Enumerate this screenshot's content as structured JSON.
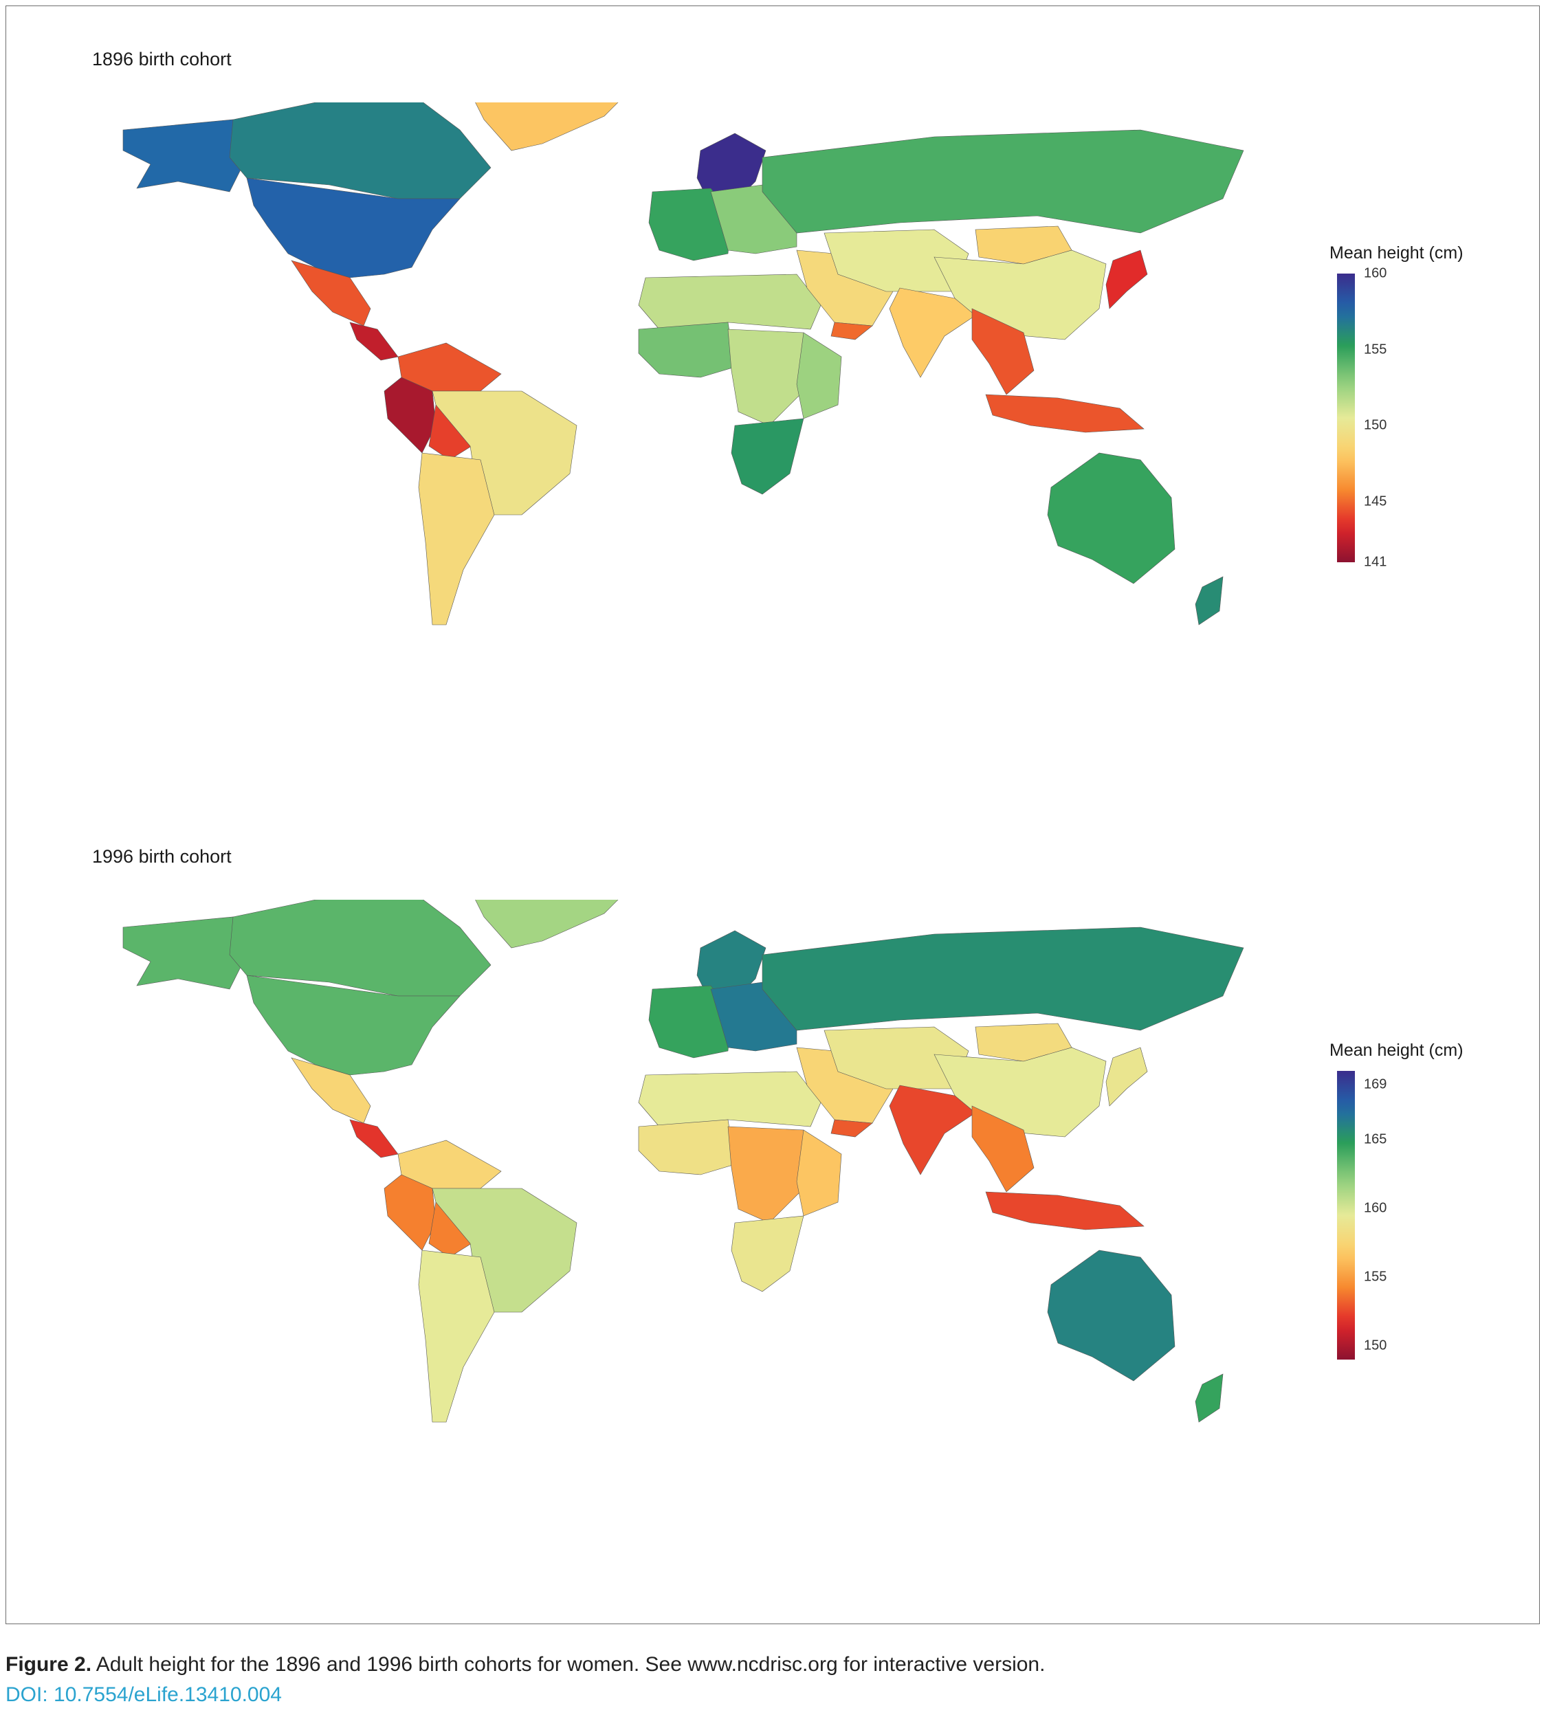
{
  "panels": [
    {
      "title": "1896 birth cohort",
      "legend": {
        "title": "Mean height (cm)",
        "min": 141,
        "max": 160,
        "ticks": [
          "160",
          "155",
          "150",
          "145",
          "141"
        ],
        "tick_values": [
          160,
          155,
          150,
          145,
          141
        ]
      },
      "regions": [
        {
          "name": "Alaska",
          "value": 157.5
        },
        {
          "name": "Canada",
          "value": 156.5
        },
        {
          "name": "USA",
          "value": 157.8
        },
        {
          "name": "Greenland",
          "value": 147.8
        },
        {
          "name": "Mexico",
          "value": 144.5
        },
        {
          "name": "Central America",
          "value": 142.5
        },
        {
          "name": "Northern South America",
          "value": 144.5
        },
        {
          "name": "Peru",
          "value": 141.8
        },
        {
          "name": "Bolivia",
          "value": 144
        },
        {
          "name": "Brazil",
          "value": 149.8
        },
        {
          "name": "Argentina",
          "value": 149
        },
        {
          "name": "Scandinavia",
          "value": 160
        },
        {
          "name": "Western Europe",
          "value": 155
        },
        {
          "name": "Eastern Europe",
          "value": 153
        },
        {
          "name": "Russia",
          "value": 154.5
        },
        {
          "name": "North Africa",
          "value": 151.5
        },
        {
          "name": "West Africa",
          "value": 153.5
        },
        {
          "name": "Central Africa",
          "value": 151.5
        },
        {
          "name": "East Africa",
          "value": 152.5
        },
        {
          "name": "Southern Africa",
          "value": 155.5
        },
        {
          "name": "Middle East",
          "value": 149
        },
        {
          "name": "Yemen",
          "value": 145
        },
        {
          "name": "Central Asia",
          "value": 150.5
        },
        {
          "name": "Mongolia",
          "value": 148.5
        },
        {
          "name": "China",
          "value": 150.5
        },
        {
          "name": "India",
          "value": 148
        },
        {
          "name": "Southeast Asia",
          "value": 144.5
        },
        {
          "name": "Japan",
          "value": 143.5
        },
        {
          "name": "Indonesia",
          "value": 144.5
        },
        {
          "name": "Australia",
          "value": 155
        },
        {
          "name": "New Zealand",
          "value": 156
        }
      ]
    },
    {
      "title": "1996 birth cohort",
      "legend": {
        "title": "Mean height (cm)",
        "min": 149,
        "max": 170,
        "ticks": [
          "169",
          "165",
          "160",
          "155",
          "150"
        ],
        "tick_values": [
          169,
          165,
          160,
          155,
          150
        ]
      },
      "regions": [
        {
          "name": "Alaska",
          "value": 163.5
        },
        {
          "name": "Canada",
          "value": 163.5
        },
        {
          "name": "USA",
          "value": 163.5
        },
        {
          "name": "Greenland",
          "value": 161.5
        },
        {
          "name": "Mexico",
          "value": 157.5
        },
        {
          "name": "Central America",
          "value": 152
        },
        {
          "name": "Northern South America",
          "value": 157.5
        },
        {
          "name": "Peru",
          "value": 154
        },
        {
          "name": "Bolivia",
          "value": 154
        },
        {
          "name": "Brazil",
          "value": 160.5
        },
        {
          "name": "Argentina",
          "value": 159.5
        },
        {
          "name": "Scandinavia",
          "value": 166
        },
        {
          "name": "Western Europe",
          "value": 164.5
        },
        {
          "name": "Eastern Europe",
          "value": 166.5
        },
        {
          "name": "Russia",
          "value": 165.5
        },
        {
          "name": "North Africa",
          "value": 159.5
        },
        {
          "name": "West Africa",
          "value": 158.5
        },
        {
          "name": "Central Africa",
          "value": 155.5
        },
        {
          "name": "East Africa",
          "value": 156.5
        },
        {
          "name": "Southern Africa",
          "value": 159
        },
        {
          "name": "Middle East",
          "value": 157.5
        },
        {
          "name": "Yemen",
          "value": 153
        },
        {
          "name": "Central Asia",
          "value": 159
        },
        {
          "name": "Mongolia",
          "value": 158
        },
        {
          "name": "China",
          "value": 159.5
        },
        {
          "name": "India",
          "value": 152.5
        },
        {
          "name": "Southeast Asia",
          "value": 154
        },
        {
          "name": "Japan",
          "value": 159
        },
        {
          "name": "Indonesia",
          "value": 152.5
        },
        {
          "name": "Australia",
          "value": 166
        },
        {
          "name": "New Zealand",
          "value": 164.5
        }
      ]
    }
  ],
  "caption": {
    "label": "Figure 2.",
    "text": " Adult height for the 1896 and 1996 birth cohorts for women. See www.ncdrisc.org for interactive version.",
    "doi": "DOI: 10.7554/eLife.13410.004"
  },
  "colors": {
    "scale": [
      "#8c1230",
      "#e0262a",
      "#f7892f",
      "#fdcf6a",
      "#e6ea98",
      "#8fce7c",
      "#2b9e5a",
      "#2166ac",
      "#3b2d8c"
    ],
    "missing": "#a3a3a3",
    "doi": "#2aa3cf"
  }
}
